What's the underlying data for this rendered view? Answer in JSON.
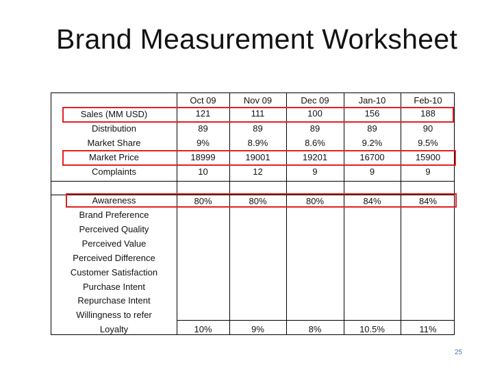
{
  "title": "Brand Measurement Worksheet",
  "page_number": "25",
  "months": [
    "Oct 09",
    "Nov 09",
    "Dec 09",
    "Jan-10",
    "Feb-10"
  ],
  "section1": {
    "rows": [
      {
        "label": "Sales (MM USD)",
        "values": [
          "121",
          "111",
          "100",
          "156",
          "188"
        ]
      },
      {
        "label": "Distribution",
        "values": [
          "89",
          "89",
          "89",
          "89",
          "90"
        ]
      },
      {
        "label": "Market Share",
        "values": [
          "9%",
          "8.9%",
          "8.6%",
          "9.2%",
          "9.5%"
        ]
      },
      {
        "label": "Market Price",
        "values": [
          "18999",
          "19001",
          "19201",
          "16700",
          "15900"
        ]
      },
      {
        "label": "Complaints",
        "values": [
          "10",
          "12",
          "9",
          "9",
          "9"
        ]
      }
    ]
  },
  "section2": {
    "labels": [
      "Awareness",
      "Brand Preference",
      "Perceived Quality",
      "Perceived Value",
      "Perceived Difference",
      "Customer Satisfaction",
      "Purchase Intent",
      "Repurchase Intent",
      "Willingness to refer",
      "Loyalty"
    ],
    "awareness_values": [
      "80%",
      "80%",
      "80%",
      "84%",
      "84%"
    ],
    "loyalty_values": [
      "10%",
      "9%",
      "8%",
      "10.5%",
      "11%"
    ]
  },
  "highlight_color": "#e02020"
}
